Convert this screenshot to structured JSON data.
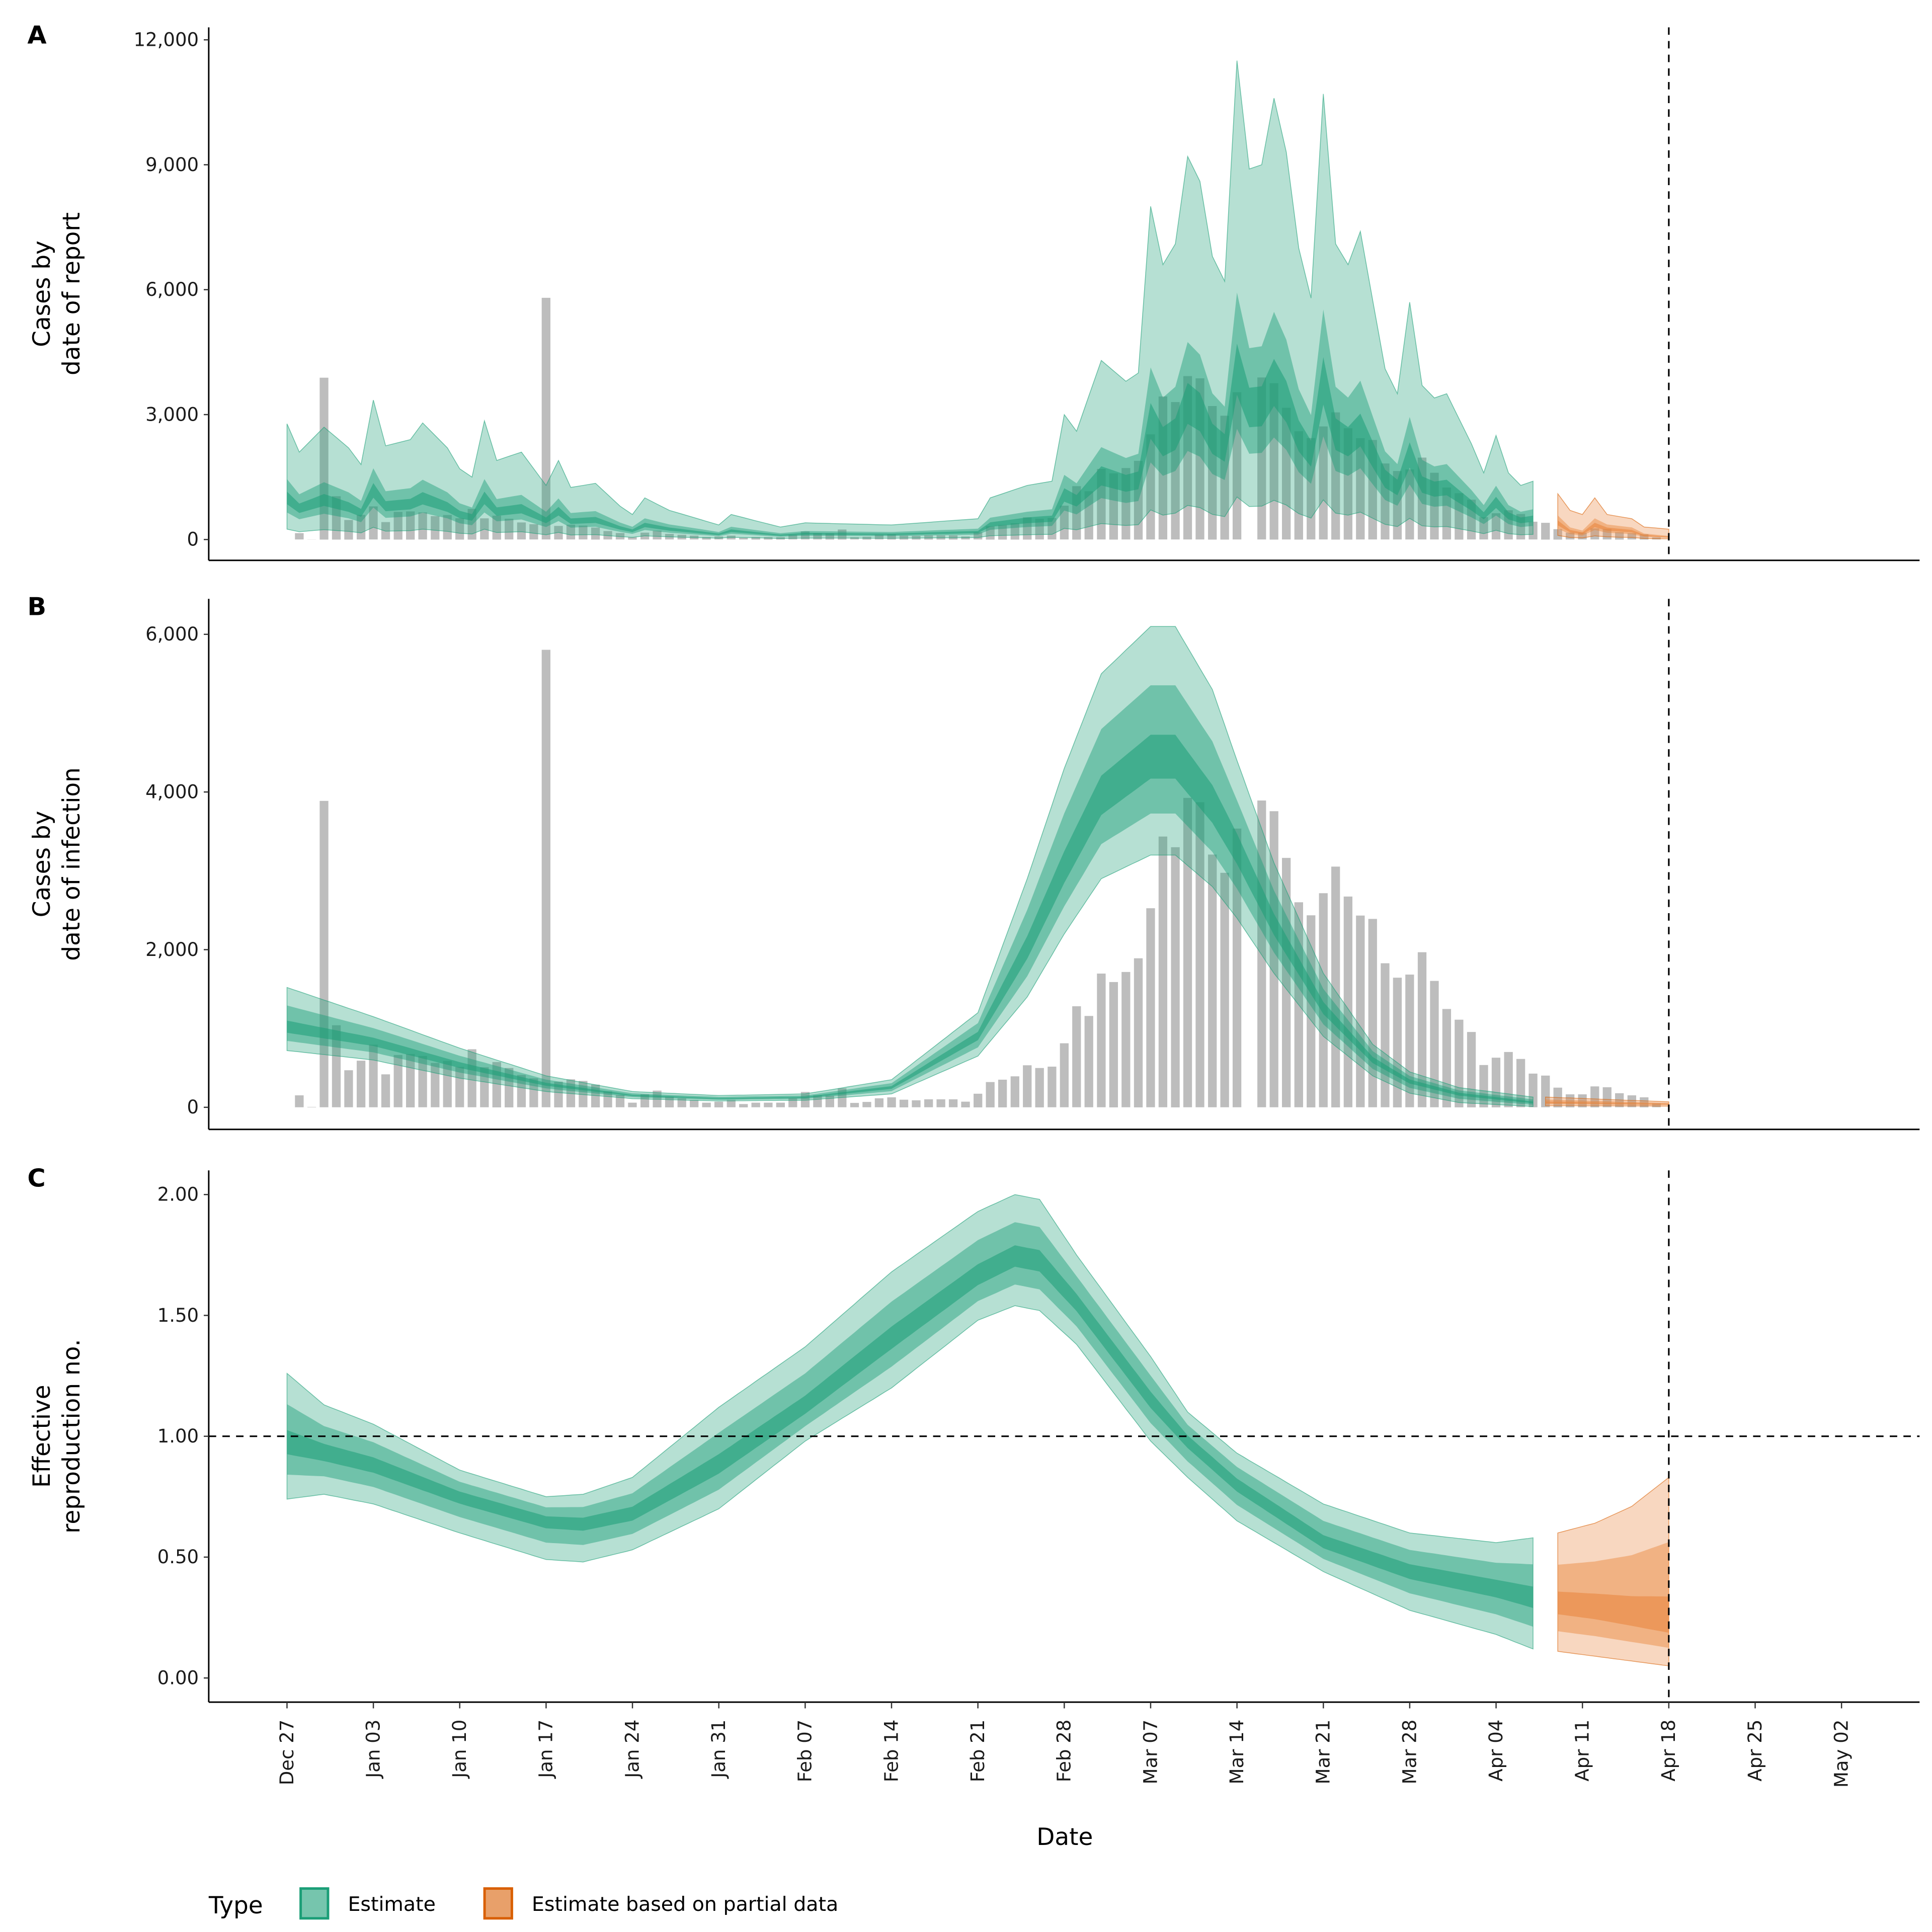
{
  "chart_data": {
    "type": "area",
    "xlabel": "Date",
    "x_ticks": [
      "Dec 27",
      "Jan 03",
      "Jan 10",
      "Jan 17",
      "Jan 24",
      "Jan 31",
      "Feb 07",
      "Feb 14",
      "Feb 21",
      "Feb 28",
      "Mar 07",
      "Mar 14",
      "Mar 21",
      "Mar 28",
      "Apr 04",
      "Apr 11",
      "Apr 18",
      "Apr 25",
      "May 02"
    ],
    "forecast_date": "Apr 18",
    "legend": {
      "title": "Type",
      "position": "bottom",
      "entries": [
        {
          "label": "Estimate",
          "color": "#1b9e77",
          "fill": "#76c5ad"
        },
        {
          "label": "Estimate based on partial data",
          "color": "#d95f02",
          "fill": "#e8a06a"
        }
      ]
    },
    "colors": {
      "estimate": "#1b9e77",
      "partial": "#d95f02",
      "bars": "#bdbdbd"
    },
    "observed_cases": {
      "start_date": "Dec 28",
      "values": [
        152,
        4,
        3887,
        1040,
        470,
        592,
        795,
        419,
        664,
        677,
        651,
        563,
        588,
        512,
        736,
        508,
        575,
        499,
        410,
        368,
        5804,
        326,
        355,
        334,
        288,
        203,
        156,
        59,
        165,
        212,
        135,
        114,
        93,
        59,
        72,
        93,
        42,
        59,
        59,
        59,
        114,
        195,
        152,
        148,
        241,
        55,
        68,
        114,
        127,
        97,
        89,
        101,
        101,
        101,
        72,
        173,
        321,
        351,
        393,
        533,
        499,
        516,
        812,
        1282,
        1159,
        1696,
        1590,
        1717,
        1891,
        2525,
        3435,
        3300,
        3925,
        3870,
        3206,
        2974,
        3536,
        0,
        3892,
        3756,
        3164,
        2601,
        2436,
        2716,
        3054,
        2673,
        2432,
        2390,
        1827,
        1645,
        1684,
        1967,
        1603,
        1248,
        1112,
        956,
        537,
        630,
        702,
        613,
        427,
        402,
        250,
        165,
        165,
        266,
        254,
        178,
        152,
        127,
        51
      ]
    },
    "panels": [
      {
        "label": "A",
        "ylabel": [
          "Cases by",
          "date of report"
        ],
        "y_ticks": [
          "0",
          "3,000",
          "6,000",
          "9,000",
          "12,000"
        ],
        "y_tick_values": [
          0,
          3000,
          6000,
          9000,
          12000
        ],
        "ylim": [
          -500,
          12300
        ],
        "band_fractions": {
          "lo90": 0.25,
          "lo50": 0.65,
          "lo20": 0.85,
          "hi20": 1.15,
          "hi50": 1.45
        },
        "estimate": {
          "dates": [
            "Dec 27",
            "Dec 28",
            "Dec 30",
            "Jan 01",
            "Jan 02",
            "Jan 03",
            "Jan 04",
            "Jan 06",
            "Jan 07",
            "Jan 09",
            "Jan 10",
            "Jan 11",
            "Jan 12",
            "Jan 13",
            "Jan 15",
            "Jan 17",
            "Jan 18",
            "Jan 19",
            "Jan 21",
            "Jan 23",
            "Jan 24",
            "Jan 25",
            "Jan 27",
            "Jan 31",
            "Feb 01",
            "Feb 05",
            "Feb 07",
            "Feb 14",
            "Feb 21",
            "Feb 22",
            "Feb 25",
            "Feb 27",
            "Feb 28",
            "Mar 01",
            "Mar 03",
            "Mar 05",
            "Mar 06",
            "Mar 07",
            "Mar 08",
            "Mar 09",
            "Mar 10",
            "Mar 11",
            "Mar 12",
            "Mar 13",
            "Mar 14",
            "Mar 15",
            "Mar 16",
            "Mar 17",
            "Mar 18",
            "Mar 19",
            "Mar 20",
            "Mar 21",
            "Mar 22",
            "Mar 23",
            "Mar 24",
            "Mar 26",
            "Mar 27",
            "Mar 28",
            "Mar 29",
            "Mar 30",
            "Mar 31",
            "Apr 02",
            "Apr 03",
            "Apr 04",
            "Apr 05",
            "Apr 06",
            "Apr 07"
          ],
          "hi90": [
            2780,
            2100,
            2700,
            2200,
            1800,
            3350,
            2250,
            2400,
            2800,
            2200,
            1700,
            1500,
            2850,
            1900,
            2100,
            1300,
            1900,
            1250,
            1350,
            800,
            600,
            1000,
            700,
            350,
            600,
            300,
            400,
            350,
            500,
            1000,
            1300,
            1400,
            3000,
            2600,
            4300,
            3800,
            4000,
            8000,
            6600,
            7100,
            9200,
            8600,
            6800,
            6200,
            11500,
            8900,
            9000,
            10600,
            9300,
            7000,
            5800,
            10700,
            7100,
            6600,
            7400,
            4100,
            3500,
            5700,
            3700,
            3400,
            3500,
            2300,
            1600,
            2500,
            1600,
            1300,
            1400
          ],
          "median": [
            1000,
            750,
            950,
            780,
            640,
            1180,
            800,
            850,
            990,
            780,
            600,
            530,
            1000,
            670,
            740,
            460,
            680,
            440,
            470,
            280,
            210,
            350,
            250,
            125,
            210,
            105,
            140,
            125,
            180,
            360,
            460,
            500,
            1070,
            930,
            1530,
            1350,
            1420,
            2850,
            2350,
            2530,
            3270,
            3060,
            2420,
            2200,
            4090,
            3170,
            3200,
            3770,
            3310,
            2490,
            2060,
            3810,
            2530,
            2350,
            2630,
            1460,
            1250,
            2030,
            1320,
            1210,
            1250,
            820,
            570,
            890,
            570,
            460,
            500
          ]
        },
        "partial": {
          "dates": [
            "Apr 09",
            "Apr 10",
            "Apr 11",
            "Apr 12",
            "Apr 13",
            "Apr 15",
            "Apr 16",
            "Apr 18"
          ],
          "hi90": [
            1100,
            700,
            600,
            1000,
            600,
            500,
            300,
            250
          ],
          "median": [
            400,
            200,
            150,
            350,
            250,
            200,
            100,
            60
          ]
        }
      },
      {
        "label": "B",
        "ylabel": [
          "Cases by",
          "date of infection"
        ],
        "y_ticks": [
          "0",
          "2,000",
          "4,000",
          "6,000"
        ],
        "y_tick_values": [
          0,
          2000,
          4000,
          6000
        ],
        "ylim": [
          -280,
          6450
        ],
        "band_fractions": {
          "k50": 0.33,
          "k20": 0.12
        },
        "estimate": {
          "dates": [
            "Dec 27",
            "Jan 03",
            "Jan 10",
            "Jan 17",
            "Jan 24",
            "Jan 31",
            "Feb 07",
            "Feb 14",
            "Feb 21",
            "Feb 25",
            "Feb 28",
            "Mar 03",
            "Mar 07",
            "Mar 09",
            "Mar 12",
            "Mar 14",
            "Mar 17",
            "Mar 21",
            "Mar 25",
            "Mar 28",
            "Apr 01",
            "Apr 07"
          ],
          "hi90": [
            1520,
            1150,
            750,
            400,
            200,
            150,
            170,
            350,
            1200,
            2900,
            4300,
            5500,
            6100,
            6100,
            5300,
            4400,
            3100,
            1700,
            800,
            450,
            250,
            130
          ],
          "median": [
            1000,
            820,
            530,
            290,
            150,
            110,
            125,
            250,
            900,
            2000,
            3000,
            3900,
            4400,
            4400,
            3800,
            3250,
            2300,
            1250,
            600,
            330,
            170,
            60
          ],
          "lo90": [
            720,
            600,
            370,
            200,
            110,
            80,
            90,
            170,
            650,
            1400,
            2200,
            2900,
            3200,
            3200,
            2800,
            2400,
            1700,
            900,
            400,
            180,
            60,
            10
          ]
        },
        "partial": {
          "dates": [
            "Apr 08",
            "Apr 18"
          ],
          "hi90": [
            130,
            70
          ],
          "median": [
            60,
            40
          ],
          "lo90": [
            20,
            15
          ]
        }
      },
      {
        "label": "C",
        "ylabel": [
          "Effective",
          "reproduction no."
        ],
        "y_ticks": [
          "0.00",
          "0.50",
          "1.00",
          "1.50",
          "2.00"
        ],
        "y_tick_values": [
          0,
          0.5,
          1,
          1.5,
          2
        ],
        "ylim": [
          -0.1,
          2.1
        ],
        "reference_line": 1.0,
        "band_fractions": {
          "k50": 0.33,
          "k20": 0.12
        },
        "estimate": {
          "dates": [
            "Dec 27",
            "Dec 30",
            "Jan 03",
            "Jan 10",
            "Jan 17",
            "Jan 20",
            "Jan 24",
            "Jan 31",
            "Feb 07",
            "Feb 14",
            "Feb 21",
            "Feb 24",
            "Feb 26",
            "Mar 01",
            "Mar 07",
            "Mar 10",
            "Mar 14",
            "Mar 21",
            "Mar 28",
            "Apr 04",
            "Apr 07"
          ],
          "hi90": [
            1.26,
            1.13,
            1.05,
            0.86,
            0.75,
            0.76,
            0.83,
            1.12,
            1.37,
            1.68,
            1.93,
            2.0,
            1.98,
            1.75,
            1.33,
            1.1,
            0.93,
            0.72,
            0.6,
            0.56,
            0.58
          ],
          "median": [
            0.97,
            0.93,
            0.88,
            0.75,
            0.65,
            0.64,
            0.68,
            0.88,
            1.12,
            1.4,
            1.66,
            1.74,
            1.72,
            1.55,
            1.15,
            0.98,
            0.8,
            0.56,
            0.44,
            0.37,
            0.33
          ],
          "lo90": [
            0.74,
            0.76,
            0.72,
            0.6,
            0.49,
            0.48,
            0.53,
            0.7,
            0.98,
            1.2,
            1.48,
            1.54,
            1.52,
            1.38,
            0.98,
            0.83,
            0.65,
            0.44,
            0.28,
            0.18,
            0.12
          ]
        },
        "partial": {
          "dates": [
            "Apr 09",
            "Apr 12",
            "Apr 15",
            "Apr 18"
          ],
          "hi90": [
            0.6,
            0.64,
            0.71,
            0.83
          ],
          "median": [
            0.3,
            0.28,
            0.25,
            0.22
          ],
          "lo90": [
            0.11,
            0.09,
            0.07,
            0.05
          ]
        }
      }
    ]
  }
}
